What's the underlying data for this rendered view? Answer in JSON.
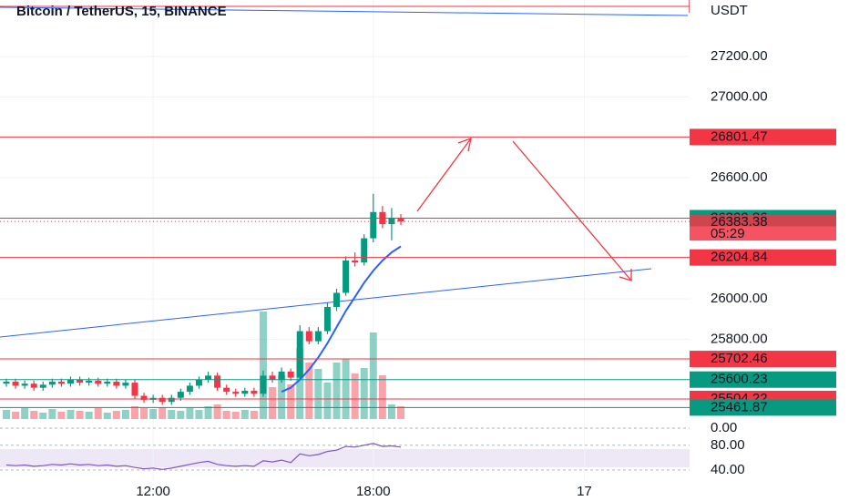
{
  "chart_data": {
    "type": "candlestick",
    "title": "Bitcoin / TetherUS, 15, BINANCE",
    "currency": "USDT",
    "categories": [
      null,
      null,
      null,
      null,
      null,
      null,
      null,
      null,
      null,
      null,
      null,
      null,
      null,
      null,
      null,
      null,
      "12:00",
      null,
      null,
      null,
      null,
      null,
      null,
      null,
      null,
      null,
      null,
      null,
      null,
      null,
      null,
      null,
      null,
      null,
      null,
      null,
      null,
      null,
      null,
      null,
      "18:00",
      null,
      null,
      null,
      null,
      null,
      null,
      null,
      null,
      null,
      null,
      null,
      null,
      null,
      null,
      null,
      null,
      null,
      null,
      null,
      null,
      null,
      null,
      "17"
    ],
    "open": [
      25580,
      25590,
      25570,
      25580,
      25560,
      25575,
      25590,
      25580,
      25600,
      25585,
      25595,
      25580,
      25590,
      25570,
      25585,
      25520,
      25500,
      25510,
      25490,
      25510,
      25540,
      25570,
      25600,
      25620,
      25560,
      25540,
      25530,
      25545,
      25530,
      25620,
      25600,
      25640,
      25610,
      25840,
      25790,
      25840,
      25960,
      26030,
      26190,
      26180,
      26300,
      26430,
      26370,
      26400,
      null,
      null,
      null,
      null,
      null,
      null,
      null,
      null,
      null,
      null,
      null,
      null,
      null,
      null,
      null,
      null,
      null,
      null,
      null,
      null
    ],
    "high": [
      25605,
      25605,
      25595,
      25595,
      25590,
      25605,
      25605,
      25615,
      25615,
      25610,
      25610,
      25605,
      25605,
      25600,
      25600,
      25535,
      25525,
      25525,
      25525,
      25555,
      25585,
      25615,
      25640,
      25635,
      25575,
      25555,
      25560,
      25560,
      25645,
      25640,
      25660,
      25655,
      25870,
      25860,
      25860,
      25980,
      26050,
      26210,
      26230,
      26320,
      26520,
      26460,
      26450,
      26420,
      null,
      null,
      null,
      null,
      null,
      null,
      null,
      null,
      null,
      null,
      null,
      null,
      null,
      null,
      null,
      null,
      null,
      null,
      null,
      null
    ],
    "low": [
      25565,
      25555,
      25555,
      25545,
      25545,
      25560,
      25565,
      25565,
      25570,
      25570,
      25565,
      25565,
      25555,
      25555,
      25505,
      25485,
      25485,
      25475,
      25475,
      25495,
      25525,
      25555,
      25585,
      25545,
      25525,
      25515,
      25515,
      25515,
      25515,
      25585,
      25585,
      25595,
      25600,
      25775,
      25775,
      25825,
      25940,
      26015,
      26160,
      26165,
      26280,
      26350,
      26290,
      26365,
      null,
      null,
      null,
      null,
      null,
      null,
      null,
      null,
      null,
      null,
      null,
      null,
      null,
      null,
      null,
      null,
      null,
      null,
      null,
      null
    ],
    "close": [
      25590,
      25570,
      25580,
      25560,
      25575,
      25590,
      25580,
      25600,
      25585,
      25595,
      25580,
      25590,
      25570,
      25585,
      25520,
      25500,
      25510,
      25490,
      25510,
      25540,
      25570,
      25600,
      25620,
      25560,
      25540,
      25530,
      25545,
      25530,
      25620,
      25600,
      25640,
      25610,
      25840,
      25790,
      25840,
      25960,
      26030,
      26190,
      26180,
      26300,
      26430,
      26370,
      26400,
      26383.38,
      null,
      null,
      null,
      null,
      null,
      null,
      null,
      null,
      null,
      null,
      null,
      null,
      null,
      null,
      null,
      null,
      null,
      null,
      null,
      null
    ],
    "ma": [
      null,
      null,
      null,
      null,
      null,
      null,
      null,
      null,
      null,
      null,
      null,
      null,
      null,
      null,
      null,
      null,
      null,
      null,
      null,
      null,
      null,
      null,
      null,
      null,
      null,
      null,
      null,
      null,
      null,
      null,
      25540,
      25560,
      25600,
      25650,
      25710,
      25780,
      25860,
      25940,
      26010,
      26080,
      26140,
      26190,
      26230,
      26260,
      null,
      null,
      null,
      null,
      null,
      null,
      null,
      null,
      null,
      null,
      null,
      null,
      null,
      null,
      null,
      null,
      null,
      null,
      null,
      null
    ],
    "ma_color": "#2962ff",
    "volume": [
      10,
      8,
      12,
      9,
      7,
      11,
      8,
      10,
      9,
      8,
      12,
      7,
      9,
      10,
      14,
      12,
      11,
      13,
      10,
      9,
      12,
      10,
      14,
      16,
      9,
      8,
      10,
      9,
      118,
      35,
      48,
      38,
      78,
      62,
      55,
      40,
      62,
      66,
      50,
      56,
      95,
      48,
      16,
      14,
      null,
      null,
      null,
      null,
      null,
      null,
      null,
      null,
      null,
      null,
      null,
      null,
      null,
      null,
      null,
      null,
      null,
      null,
      null,
      null
    ],
    "up_color": "#089981",
    "down_color": "#f23645",
    "ylim": [
      25405,
      27480
    ],
    "yticks": [
      {
        "value": 27200,
        "label": "27200.00"
      },
      {
        "value": 27000,
        "label": "27000.00"
      },
      {
        "value": 26600,
        "label": "26600.00"
      },
      {
        "value": 26000,
        "label": "26000.00"
      },
      {
        "value": 25800,
        "label": "25800.00"
      }
    ],
    "grid": true,
    "price_lines": [
      {
        "value": 26801.47,
        "color": "#f23645"
      },
      {
        "value": 26399.86,
        "color": "#089981"
      },
      {
        "value": 26383.38,
        "color": "#f23645",
        "countdown": "05:29"
      },
      {
        "value": 26204.84,
        "color": "#f23645"
      },
      {
        "value": 25702.46,
        "color": "#f23645"
      },
      {
        "value": 25600.23,
        "color": "#089981"
      },
      {
        "value": 25504.22,
        "color": "#f23645"
      },
      {
        "value": 25461.87,
        "color": "#089981"
      }
    ],
    "osc": {
      "ylim": [
        -1,
        1
      ],
      "yticks": [
        {
          "value": 0,
          "label": "0.00"
        }
      ]
    },
    "rsi": {
      "color": "#7e57c2",
      "ylim": [
        9,
        90
      ],
      "yticks": [
        {
          "value": 80,
          "label": "80.00"
        },
        {
          "value": 40,
          "label": "40.00"
        }
      ],
      "values": [
        48,
        47,
        48,
        46,
        47,
        49,
        48,
        50,
        48,
        49,
        47,
        48,
        46,
        47,
        44,
        42,
        43,
        41,
        43,
        46,
        49,
        52,
        54,
        49,
        47,
        46,
        47,
        46,
        55,
        53,
        56,
        52,
        66,
        63,
        65,
        70,
        72,
        78,
        77,
        80,
        83,
        78,
        79,
        77,
        null,
        null,
        null,
        null,
        null,
        null,
        null,
        null,
        null,
        null,
        null,
        null,
        null,
        null,
        null,
        null,
        null,
        null,
        null,
        null
      ]
    }
  }
}
